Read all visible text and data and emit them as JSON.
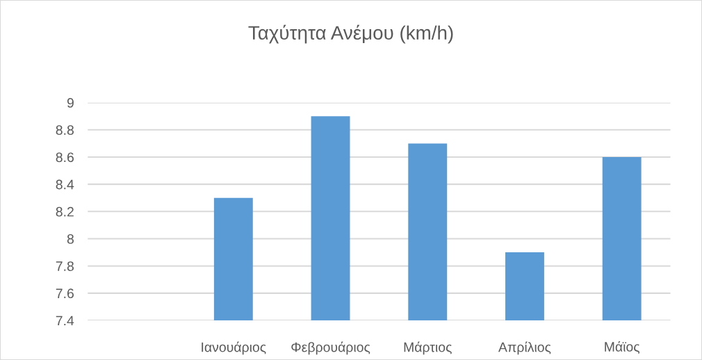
{
  "chart_data": {
    "type": "bar",
    "title": "Ταχύτητα Ανέμου (km/h)",
    "categories": [
      null,
      "Ιανουάριος",
      "Φεβρουάριος",
      "Μάρτιος",
      "Απρίλιος",
      "Μάϊος"
    ],
    "values": [
      null,
      8.3,
      8.9,
      8.7,
      7.9,
      8.6
    ],
    "color": "#5b9bd5",
    "ylim": [
      7.4,
      9
    ],
    "yticks": [
      7.4,
      7.6,
      7.8,
      8,
      8.2,
      8.4,
      8.6,
      8.8,
      9
    ],
    "grid": "y"
  }
}
